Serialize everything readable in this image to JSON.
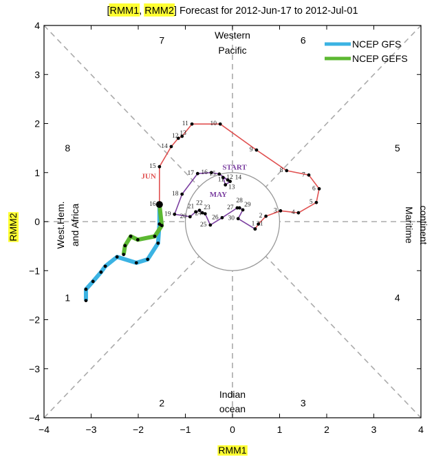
{
  "chart_data": {
    "type": "line",
    "title_parts": [
      "[",
      "RMM1",
      ", ",
      "RMM2",
      "] Forecast for 2012-Jun-17 to 2012-Jul-01"
    ],
    "xlabel": "RMM1",
    "ylabel": "RMM2",
    "xlim": [
      -4,
      4
    ],
    "ylim": [
      -4,
      4
    ],
    "xticks": [
      "-4",
      "-3",
      "-2",
      "-1",
      "0",
      "1",
      "2",
      "3",
      "4"
    ],
    "yticks": [
      "-4",
      "-3",
      "-2",
      "-1",
      "0",
      "1",
      "2",
      "3",
      "4"
    ],
    "grid": false,
    "unit_circle_radius": 1,
    "legend_position": "top-right",
    "highlight_color": "#ffff33",
    "phases": [
      {
        "label": "1",
        "x": -3.5,
        "y": -1.55
      },
      {
        "label": "2",
        "x": -1.5,
        "y": -3.7
      },
      {
        "label": "3",
        "x": 1.5,
        "y": -3.7
      },
      {
        "label": "4",
        "x": 3.5,
        "y": -1.55
      },
      {
        "label": "5",
        "x": 3.5,
        "y": 1.5
      },
      {
        "label": "6",
        "x": 1.5,
        "y": 3.7
      },
      {
        "label": "7",
        "x": -1.5,
        "y": 3.7
      },
      {
        "label": "8",
        "x": -3.5,
        "y": 1.5
      }
    ],
    "regions": {
      "top": [
        "Western",
        "Pacific"
      ],
      "bottom": [
        "Indian",
        "ocean"
      ],
      "left": [
        "West.Hem.",
        "and Africa"
      ],
      "right": [
        "Maritime",
        "continent"
      ]
    },
    "month_labels": {
      "may": "MAY",
      "jun": "JUN",
      "start": "START"
    },
    "series": [
      {
        "name": "May observed",
        "color": "#7b3fa0",
        "points": [
          {
            "d": "11",
            "x": -0.1,
            "y": 0.85
          },
          {
            "d": "12",
            "x": -0.2,
            "y": 0.9
          },
          {
            "d": "13",
            "x": -0.15,
            "y": 0.75
          },
          {
            "d": "14",
            "x": -0.05,
            "y": 0.82
          },
          {
            "d": "15",
            "x": -0.28,
            "y": 0.97
          },
          {
            "d": "16",
            "x": -0.45,
            "y": 1.0
          },
          {
            "d": "17",
            "x": -0.74,
            "y": 0.98
          },
          {
            "d": "18",
            "x": -1.07,
            "y": 0.56
          },
          {
            "d": "19",
            "x": -1.23,
            "y": 0.15
          },
          {
            "d": "20",
            "x": -0.9,
            "y": 0.1
          },
          {
            "d": "21",
            "x": -0.78,
            "y": 0.2
          },
          {
            "d": "22",
            "x": -0.7,
            "y": 0.23
          },
          {
            "d": "23",
            "x": -0.64,
            "y": 0.18
          },
          {
            "d": "24",
            "x": -0.58,
            "y": 0.16
          },
          {
            "d": "25",
            "x": -0.47,
            "y": -0.07
          },
          {
            "d": "26",
            "x": -0.22,
            "y": 0.08
          },
          {
            "d": "27",
            "x": 0.1,
            "y": 0.28
          },
          {
            "d": "28",
            "x": 0.15,
            "y": 0.28
          },
          {
            "d": "29",
            "x": 0.22,
            "y": 0.24
          },
          {
            "d": "30",
            "x": 0.12,
            "y": 0.06
          },
          {
            "d": "31",
            "x": 0.48,
            "y": -0.15
          }
        ]
      },
      {
        "name": "June observed",
        "color": "#e05050",
        "points": [
          {
            "d": "",
            "x": 0.48,
            "y": -0.15
          },
          {
            "d": "1",
            "x": 0.55,
            "y": -0.05
          },
          {
            "d": "2",
            "x": 0.71,
            "y": 0.11
          },
          {
            "d": "3",
            "x": 1.02,
            "y": 0.22
          },
          {
            "d": "4",
            "x": 1.4,
            "y": 0.18
          },
          {
            "d": "5",
            "x": 1.78,
            "y": 0.39
          },
          {
            "d": "6",
            "x": 1.84,
            "y": 0.67
          },
          {
            "d": "7",
            "x": 1.62,
            "y": 0.95
          },
          {
            "d": "8",
            "x": 1.15,
            "y": 1.04
          },
          {
            "d": "9",
            "x": 0.51,
            "y": 1.46
          },
          {
            "d": "10",
            "x": -0.26,
            "y": 1.99
          },
          {
            "d": "11",
            "x": -0.86,
            "y": 1.99
          },
          {
            "d": "12",
            "x": -1.07,
            "y": 1.74
          },
          {
            "d": "13",
            "x": -1.15,
            "y": 1.7
          },
          {
            "d": "14",
            "x": -1.3,
            "y": 1.53
          },
          {
            "d": "15",
            "x": -1.55,
            "y": 1.12
          },
          {
            "d": "16",
            "x": -1.55,
            "y": 0.35
          }
        ]
      },
      {
        "name": "NCEP GFS",
        "color": "#3bb3e3",
        "points": [
          {
            "x": -1.55,
            "y": 0.35
          },
          {
            "x": -1.55,
            "y": -0.05
          },
          {
            "x": -1.58,
            "y": -0.44
          },
          {
            "x": -1.8,
            "y": -0.77
          },
          {
            "x": -2.04,
            "y": -0.84
          },
          {
            "x": -2.45,
            "y": -0.72
          },
          {
            "x": -2.7,
            "y": -0.91
          },
          {
            "x": -2.79,
            "y": -1.03
          },
          {
            "x": -2.96,
            "y": -1.22
          },
          {
            "x": -3.11,
            "y": -1.38
          },
          {
            "x": -3.11,
            "y": -1.61
          }
        ]
      },
      {
        "name": "NCEP GEFS",
        "color": "#5cb832",
        "points": [
          {
            "x": -1.55,
            "y": 0.35
          },
          {
            "x": -1.5,
            "y": -0.08
          },
          {
            "x": -1.65,
            "y": -0.3
          },
          {
            "x": -2.01,
            "y": -0.37
          },
          {
            "x": -2.16,
            "y": -0.3
          },
          {
            "x": -2.28,
            "y": -0.49
          },
          {
            "x": -2.31,
            "y": -0.67
          }
        ]
      }
    ],
    "legend": [
      {
        "label": "NCEP GFS",
        "color": "#3bb3e3"
      },
      {
        "label": "NCEP GEFS",
        "color": "#5cb832"
      }
    ]
  }
}
